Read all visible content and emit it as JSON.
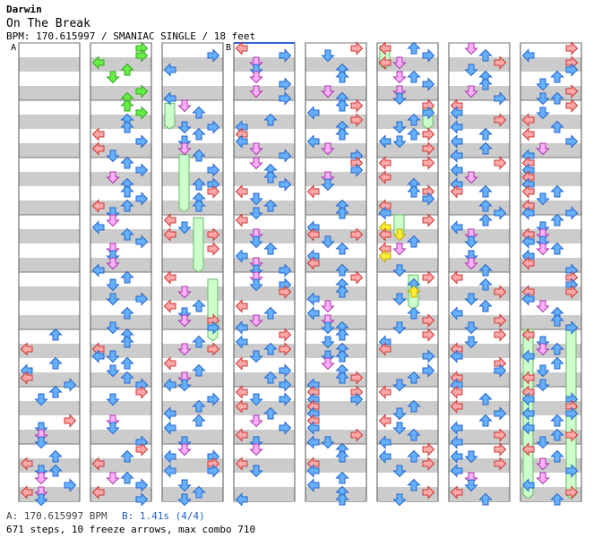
{
  "song": {
    "artist": "Darwin",
    "title": "On The Break",
    "meta": "BPM: 170.615997 / SMANIAC SINGLE / 18 feet"
  },
  "markers": [
    {
      "label": "A",
      "column": 0,
      "beat": 0
    },
    {
      "label": "B",
      "column": 3,
      "beat": 0
    }
  ],
  "footer": {
    "bpm_legend": "A: 170.615997 BPM",
    "offset_legend": "B: 1.41s (4/4)",
    "stats": "671 steps, 10 freeze arrows, max combo 710"
  },
  "palette": {
    "left": "#ff9999",
    "down": "#ffaaff",
    "up": "#66aaff",
    "right": "#ff9999",
    "quarter_left": "#ffb0b0",
    "eighth": "#66aaff",
    "sixteenth": "#ffccff",
    "freeze": "#ccffcc",
    "freeze_border": "#66bb66",
    "green_arrow": "#66ee44",
    "yellow_arrow": "#ffee33",
    "stripe": "#cccccc"
  },
  "chart_data": {
    "type": "stepchart",
    "columns": 8,
    "measures_per_column": 8,
    "lanes": [
      "left",
      "down",
      "up",
      "right"
    ],
    "freezes": [
      {
        "column": 2,
        "lane": 0,
        "start": 4.2,
        "end": 6.0
      },
      {
        "column": 2,
        "lane": 1,
        "start": 7.8,
        "end": 11.8
      },
      {
        "column": 2,
        "lane": 2,
        "start": 12.2,
        "end": 16.0
      },
      {
        "column": 2,
        "lane": 3,
        "start": 16.5,
        "end": 20.8
      },
      {
        "column": 5,
        "lane": 0,
        "start": 0.2,
        "end": 1.8
      },
      {
        "column": 5,
        "lane": 3,
        "start": 4.4,
        "end": 6.0
      },
      {
        "column": 5,
        "lane": 2,
        "start": 16.2,
        "end": 18.6
      },
      {
        "column": 7,
        "lane": 0,
        "start": 20.0,
        "end": 31.8
      },
      {
        "column": 7,
        "lane": 3,
        "start": 20.0,
        "end": 31.8
      },
      {
        "column": 5,
        "lane": 1,
        "start": 12.0,
        "end": 13.6
      }
    ]
  }
}
